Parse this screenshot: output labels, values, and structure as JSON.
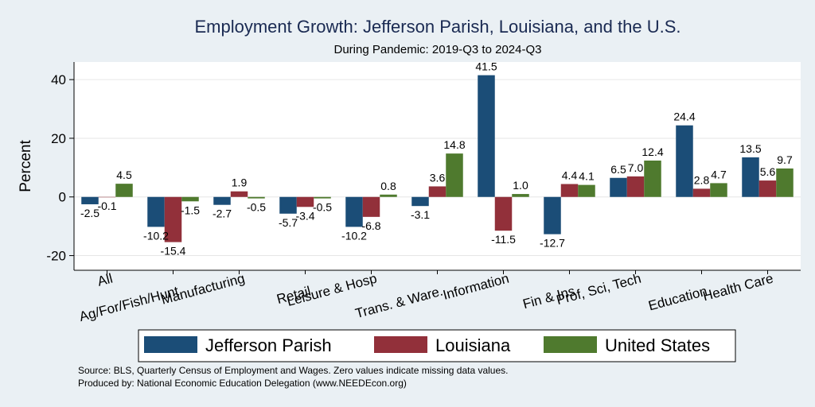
{
  "colors": {
    "background": "#eaf0f4",
    "plot_background": "#ffffff",
    "title": "#1a2a52",
    "series": [
      "#1b4d77",
      "#92303a",
      "#4f7a2e"
    ]
  },
  "chart_data": {
    "type": "bar",
    "title": "Employment Growth: Jefferson Parish, Louisiana, and the U.S.",
    "subtitle": "During Pandemic: 2019-Q3 to 2024-Q3",
    "ylabel": "Percent",
    "xlabel": "",
    "ylim": [
      -25,
      46
    ],
    "yticks": [
      -20,
      0,
      20,
      40
    ],
    "grid": true,
    "legend_position": "bottom",
    "categories": [
      "All",
      "Ag/For/Fish/Hunt",
      "Manufacturing",
      "Retail",
      "Leisure & Hosp",
      "Trans. & Ware.",
      "Information",
      "Fin & Ins",
      "Prof, Sci, Tech",
      "Education",
      "Health Care"
    ],
    "series": [
      {
        "name": "Jefferson Parish",
        "values": [
          -2.5,
          -10.2,
          -2.7,
          -5.7,
          -10.2,
          -3.1,
          41.5,
          -12.7,
          6.5,
          24.4,
          13.5
        ]
      },
      {
        "name": "Louisiana",
        "values": [
          -0.1,
          -15.4,
          1.9,
          -3.4,
          -6.8,
          3.6,
          -11.5,
          4.4,
          7.0,
          2.8,
          5.6
        ]
      },
      {
        "name": "United States",
        "values": [
          4.5,
          -1.5,
          -0.5,
          -0.5,
          0.8,
          14.8,
          1.0,
          4.1,
          12.4,
          4.7,
          9.7
        ]
      }
    ]
  },
  "footnotes": {
    "source": "Source: BLS, Quarterly Census of Employment and Wages. Zero values indicate missing data values.",
    "produced_by": "Produced by: National Economic Education Delegation (www.NEEDEcon.org)"
  }
}
